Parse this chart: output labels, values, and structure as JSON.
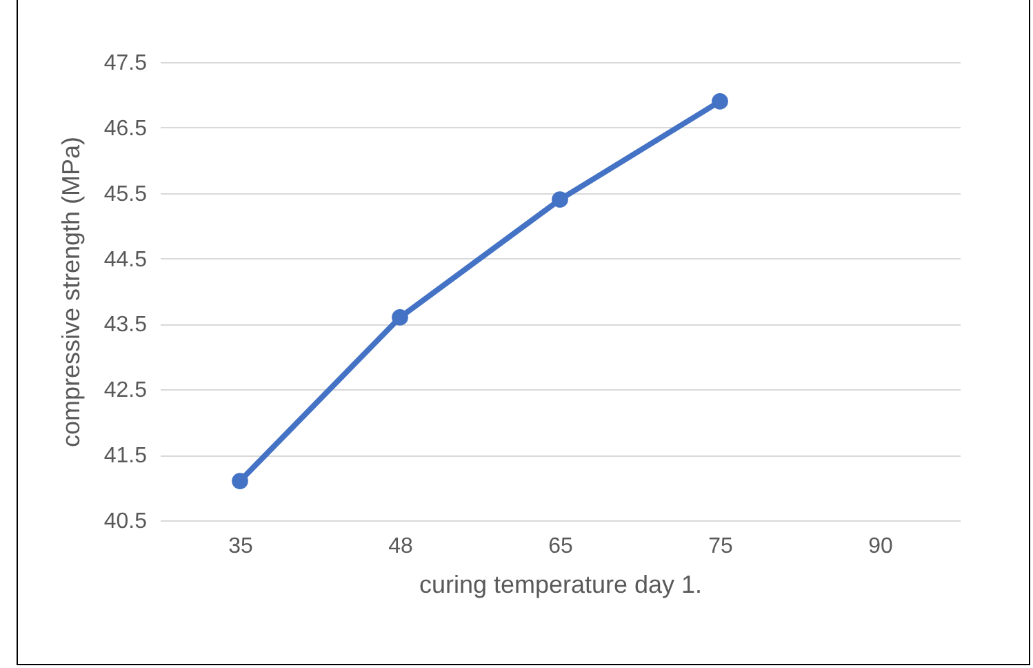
{
  "chart_data": {
    "type": "line",
    "xlabel": "curing temperature day 1.",
    "ylabel": "compressive strength (MPa)",
    "categories": [
      "35",
      "48",
      "65",
      "75",
      "90"
    ],
    "series": [
      {
        "color": "#4472c4",
        "values": [
          41.1,
          43.6,
          45.4,
          46.9,
          null
        ]
      }
    ],
    "ylim": [
      40.5,
      47.5
    ],
    "yticks": [
      40.5,
      41.5,
      42.5,
      43.5,
      44.5,
      45.5,
      46.5,
      47.5
    ],
    "grid": "y",
    "marker": "circle",
    "line_style": "solid"
  }
}
